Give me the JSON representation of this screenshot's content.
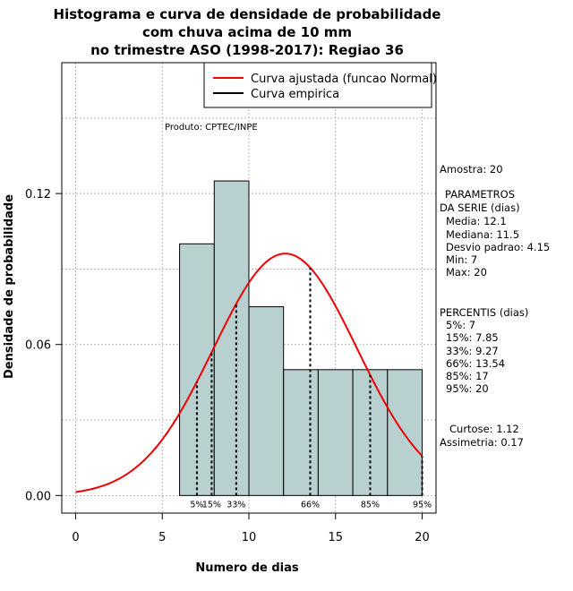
{
  "chart_data": {
    "type": "bar",
    "title_lines": [
      "Histograma e curva de densidade de probabilidade",
      "com chuva acima de 10 mm",
      "no trimestre ASO (1998-2017): Regiao 36"
    ],
    "xlabel": "Numero de dias",
    "ylabel": "Densidade de probabilidade",
    "xlim": [
      -0.8,
      20.8
    ],
    "ylim": [
      -0.007,
      0.172
    ],
    "x_ticks": [
      0,
      5,
      10,
      15,
      20
    ],
    "y_ticks": [
      0.0,
      0.06,
      0.12
    ],
    "y_tick_labels": [
      "0.00",
      "0.06",
      "0.12"
    ],
    "grid": true,
    "gridlines_y": [
      0.0,
      0.03,
      0.06,
      0.09,
      0.12,
      0.15
    ],
    "gridlines_x": [
      0,
      5,
      10,
      15,
      20
    ],
    "bins": [
      {
        "x0": 6,
        "x1": 8,
        "density": 0.1
      },
      {
        "x0": 8,
        "x1": 10,
        "density": 0.125
      },
      {
        "x0": 10,
        "x1": 12,
        "density": 0.075
      },
      {
        "x0": 12,
        "x1": 14,
        "density": 0.05
      },
      {
        "x0": 14,
        "x1": 16,
        "density": 0.05
      },
      {
        "x0": 16,
        "x1": 18,
        "density": 0.05
      },
      {
        "x0": 18,
        "x1": 20,
        "density": 0.05
      }
    ],
    "bar_color": "#b8d0d0",
    "curve_color": "#ee0000",
    "normal_fit": {
      "mean": 12.1,
      "sd": 4.15,
      "x_from": 0,
      "x_to": 20
    },
    "percentile_lines": [
      {
        "label": "5%",
        "x": 7
      },
      {
        "label": "15%",
        "x": 7.85
      },
      {
        "label": "33%",
        "x": 9.27
      },
      {
        "label": "66%",
        "x": 13.54
      },
      {
        "label": "85%",
        "x": 17
      },
      {
        "label": "95%",
        "x": 20
      }
    ],
    "legend": {
      "position": "top-right",
      "items": [
        {
          "label": "Curva ajustada (funcao Normal)",
          "color": "#ee0000"
        },
        {
          "label": "Curva empirica",
          "color": "#000000"
        }
      ]
    },
    "annotation": "Produto: CPTEC/INPE"
  },
  "stats": {
    "amostra": "Amostra: 20",
    "param_header_1": "PARAMETROS",
    "param_header_2": "DA SERIE (dias)",
    "params": [
      "Media: 12.1",
      "Mediana: 11.5",
      "Desvio padrao: 4.15",
      "Min: 7",
      "Max: 20"
    ],
    "percentis_header": "PERCENTIS (dias)",
    "percentis": [
      "5%: 7",
      "15%: 7.85",
      "33%: 9.27",
      "66%: 13.54",
      "85%: 17",
      "95%: 20"
    ],
    "curtose": "Curtose: 1.12",
    "assimetria": "Assimetria: 0.17"
  }
}
